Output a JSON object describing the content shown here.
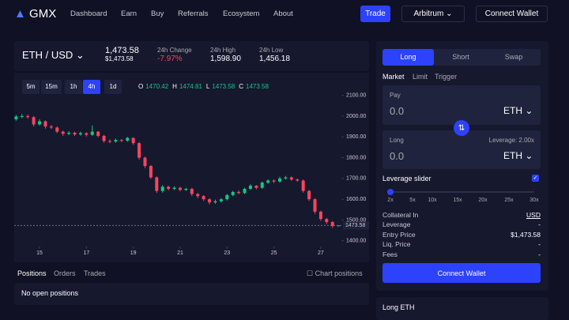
{
  "nav": {
    "logo": "GMX",
    "links": [
      "Dashboard",
      "Earn",
      "Buy",
      "Referrals",
      "Ecosystem",
      "About"
    ],
    "trade": "Trade",
    "network": "Arbitrum",
    "connect": "Connect Wallet"
  },
  "market": {
    "pair": "ETH / USD",
    "price": "1,473.58",
    "price_usd": "$1,473.58",
    "stats": [
      {
        "label": "24h Change",
        "value": "-7.97%"
      },
      {
        "label": "24h High",
        "value": "1,598.90"
      },
      {
        "label": "24h Low",
        "value": "1,456.18"
      }
    ]
  },
  "timeframes": [
    "5m",
    "15m",
    "1h",
    "4h",
    "1d"
  ],
  "active_timeframe": 3,
  "chart_data": {
    "type": "candlestick",
    "ohlc_labels": [
      "O",
      "H",
      "L",
      "C"
    ],
    "x": [
      14,
      14.25,
      14.5,
      14.75,
      15,
      15.25,
      15.5,
      15.75,
      16,
      16.25,
      16.5,
      16.75,
      17,
      17.25,
      17.5,
      17.75,
      18,
      18.25,
      18.5,
      18.75,
      19,
      19.25,
      19.5,
      19.75,
      20,
      20.25,
      20.5,
      20.75,
      21,
      21.25,
      21.5,
      21.75,
      22,
      22.25,
      22.5,
      22.75,
      23,
      23.25,
      23.5,
      23.75,
      24,
      24.25,
      24.5,
      24.75,
      25,
      25.25,
      25.5,
      25.75,
      26,
      26.25,
      26.5,
      26.75,
      27,
      27.25,
      27.5,
      27.75
    ],
    "open": [
      1985,
      1998,
      2000,
      1995,
      1960,
      1975,
      1950,
      1945,
      1925,
      1915,
      1920,
      1912,
      1918,
      1910,
      1925,
      1905,
      1880,
      1878,
      1885,
      1882,
      1895,
      1870,
      1800,
      1760,
      1705,
      1640,
      1660,
      1650,
      1655,
      1645,
      1650,
      1625,
      1615,
      1600,
      1585,
      1590,
      1600,
      1620,
      1635,
      1630,
      1650,
      1665,
      1655,
      1680,
      1690,
      1685,
      1700,
      1705,
      1695,
      1690,
      1640,
      1600,
      1540,
      1505,
      1490,
      1470.42
    ],
    "high": [
      2005,
      2010,
      2008,
      2000,
      1985,
      1980,
      1958,
      1950,
      1930,
      1928,
      1925,
      1925,
      1922,
      1955,
      1928,
      1910,
      1888,
      1892,
      1890,
      1900,
      1898,
      1875,
      1805,
      1765,
      1710,
      1668,
      1665,
      1662,
      1660,
      1655,
      1655,
      1630,
      1620,
      1605,
      1598,
      1605,
      1625,
      1640,
      1642,
      1655,
      1672,
      1668,
      1685,
      1695,
      1695,
      1708,
      1712,
      1710,
      1700,
      1695,
      1645,
      1605,
      1545,
      1510,
      1495,
      1474.81
    ],
    "low": [
      1978,
      1990,
      1988,
      1950,
      1955,
      1940,
      1938,
      1918,
      1905,
      1908,
      1905,
      1906,
      1902,
      1905,
      1898,
      1872,
      1870,
      1872,
      1875,
      1876,
      1862,
      1792,
      1750,
      1698,
      1630,
      1632,
      1642,
      1644,
      1638,
      1640,
      1615,
      1605,
      1592,
      1575,
      1578,
      1584,
      1594,
      1614,
      1624,
      1625,
      1644,
      1648,
      1650,
      1674,
      1678,
      1680,
      1694,
      1688,
      1684,
      1632,
      1592,
      1530,
      1496,
      1480,
      1462,
      1473.58
    ],
    "close": [
      1998,
      2000,
      1995,
      1960,
      1975,
      1950,
      1945,
      1925,
      1915,
      1920,
      1912,
      1918,
      1910,
      1925,
      1905,
      1880,
      1878,
      1885,
      1882,
      1895,
      1870,
      1800,
      1760,
      1705,
      1640,
      1660,
      1650,
      1655,
      1645,
      1650,
      1625,
      1615,
      1600,
      1585,
      1590,
      1600,
      1620,
      1635,
      1630,
      1650,
      1665,
      1655,
      1680,
      1690,
      1685,
      1700,
      1705,
      1695,
      1690,
      1640,
      1600,
      1540,
      1505,
      1490,
      1471,
      1473.58
    ],
    "up_color": "#0ecb81",
    "down_color": "#f6465d",
    "xlim": [
      13.92,
      27.88
    ],
    "xticks": [
      15,
      17,
      19,
      21,
      23,
      25,
      27
    ],
    "ylim": [
      1380,
      2190
    ],
    "yticks": [
      {
        "value": 2100,
        "label": "2100.00"
      },
      {
        "value": 2000,
        "label": "2000.00"
      },
      {
        "value": 1900,
        "label": "1900.00"
      },
      {
        "value": 1800,
        "label": "1800.00"
      },
      {
        "value": 1700,
        "label": "1700.00"
      },
      {
        "value": 1600,
        "label": "1600.00"
      },
      {
        "value": 1500,
        "label": "1500.00"
      },
      {
        "value": 1400,
        "label": "1400.00"
      }
    ]
  },
  "positions": {
    "tabs": [
      "Positions",
      "Orders",
      "Trades"
    ],
    "chart_positions": "Chart positions",
    "empty": "No open positions"
  },
  "trade": {
    "tabs": [
      "Long",
      "Short",
      "Swap"
    ],
    "order_types": [
      "Market",
      "Limit",
      "Trigger"
    ],
    "pay": {
      "label": "Pay",
      "amount": "0.0",
      "token": "ETH"
    },
    "receive": {
      "label": "Long",
      "leverage": "Leverage: 2.00x",
      "amount": "0.0",
      "token": "ETH"
    },
    "leverage_slider": "Leverage slider",
    "leverage_marks": [
      "2x",
      "5x",
      "10x",
      "15x",
      "20x",
      "25x",
      "30x"
    ],
    "rows": [
      [
        "Collateral In",
        "USD"
      ],
      [
        "Leverage",
        "-"
      ],
      [
        "Entry Price",
        "$1,473.58"
      ],
      [
        "Liq. Price",
        "-"
      ],
      [
        "Fees",
        "-"
      ]
    ],
    "button": "Connect Wallet",
    "footer": "Long ETH"
  }
}
